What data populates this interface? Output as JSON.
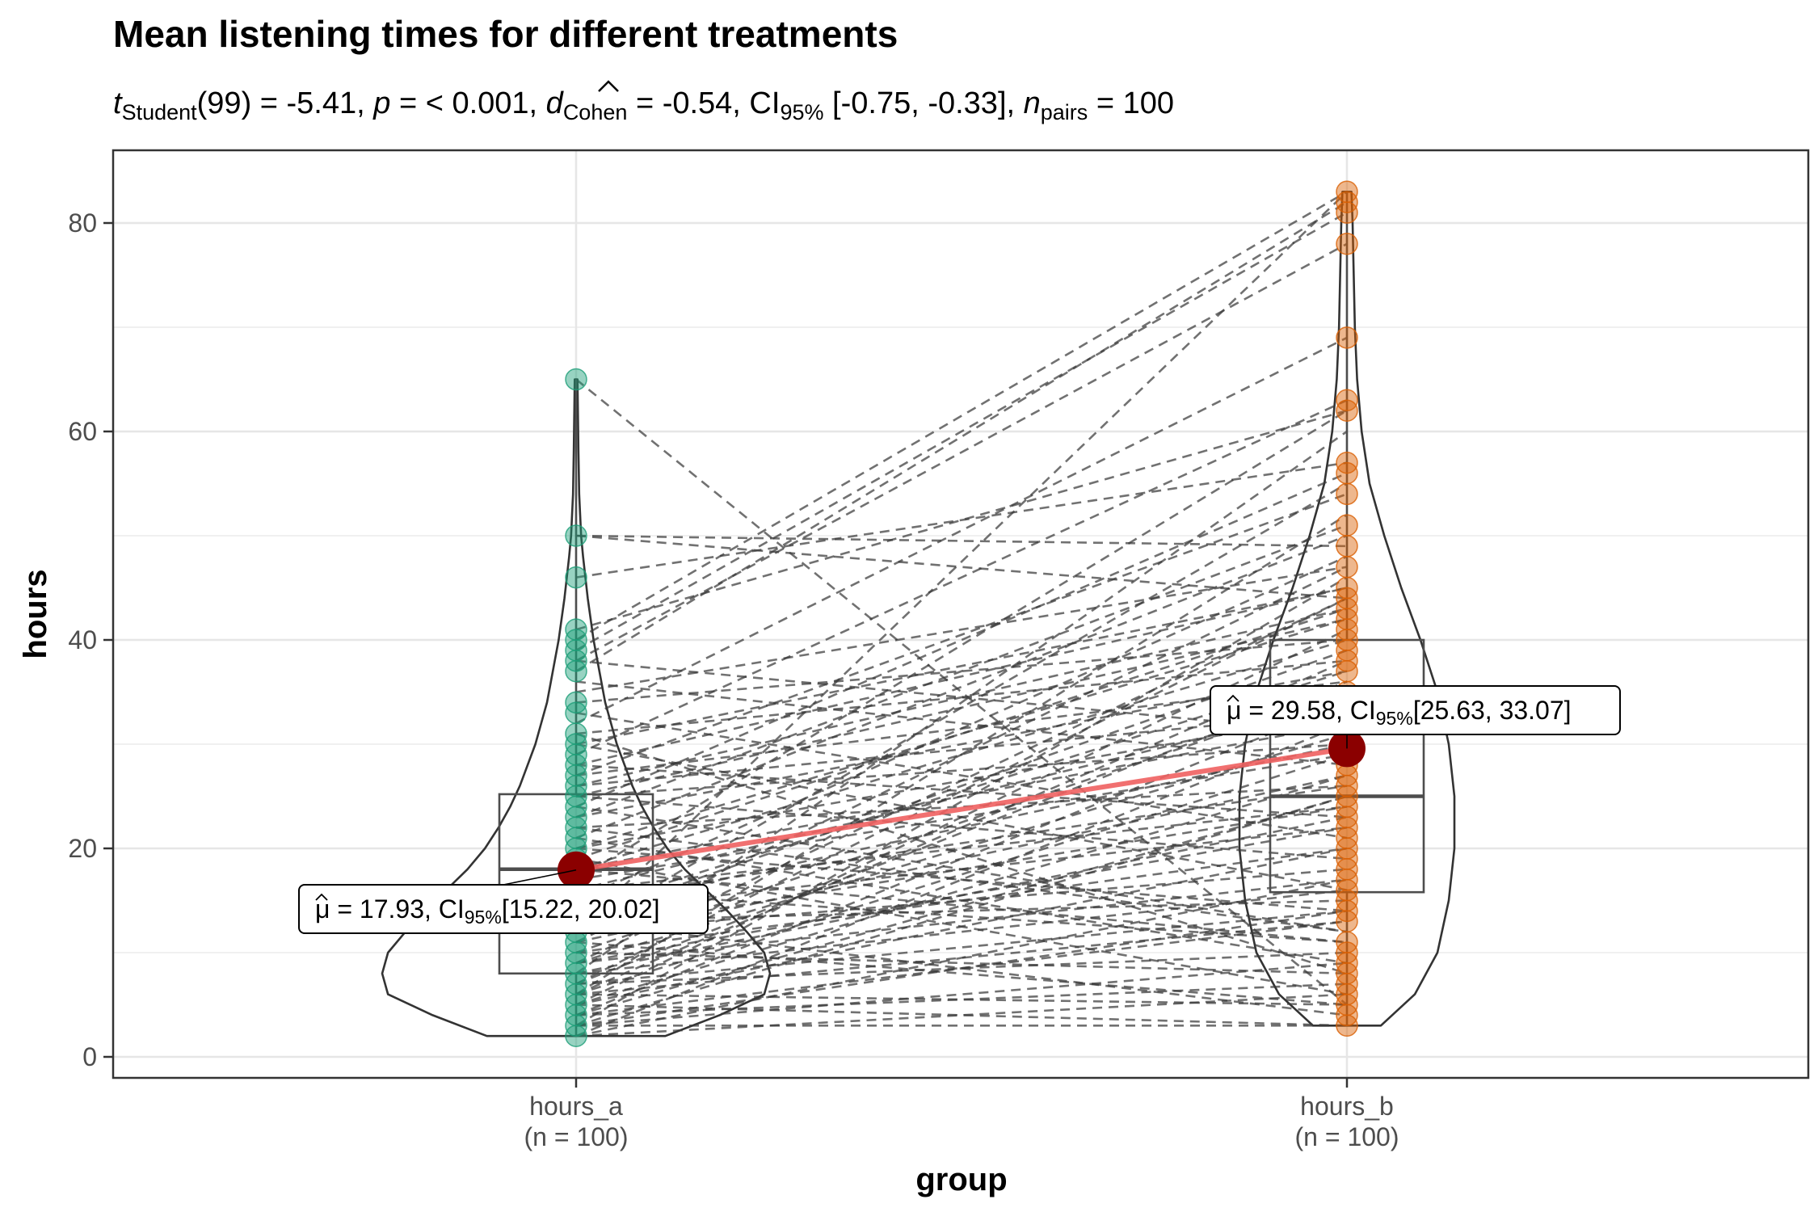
{
  "chart_data": {
    "type": "violin-box-paired",
    "title": "Mean listening times for different treatments",
    "subtitle": {
      "t_symbol": "t",
      "t_sub": "Student",
      "t_rest": "(99) = -5.41, ",
      "p_symbol": "p",
      "p_rest": " = < 0.001, ",
      "d_symbol": "d",
      "d_sub": "Cohen",
      "d_rest": " = -0.54, CI",
      "ci_sub": "95%",
      "ci_rest": " [-0.75, -0.33], ",
      "n_symbol": "n",
      "n_sub": "pairs",
      "n_rest": " = 100"
    },
    "xlabel": "group",
    "ylabel": "hours",
    "ylim": [
      -2,
      86
    ],
    "yticks": [
      0,
      20,
      40,
      60,
      80
    ],
    "grid": true,
    "groups": [
      {
        "name": "hours_a",
        "n_label": "(n = 100)",
        "color": "#1b9e77",
        "mean": 17.93,
        "label_mu": "μ",
        "label_text1": " = 17.93, CI",
        "label_sub": "95%",
        "label_text2": "[15.22, 20.02]",
        "box": {
          "q1": 8,
          "median": 18,
          "q3": 25.2,
          "min": 2,
          "max": 65
        },
        "violin": [
          [
            2,
            0.46
          ],
          [
            4,
            0.74
          ],
          [
            6,
            0.97
          ],
          [
            8,
            1.0
          ],
          [
            10,
            0.97
          ],
          [
            12,
            0.88
          ],
          [
            14,
            0.78
          ],
          [
            16,
            0.67
          ],
          [
            18,
            0.56
          ],
          [
            20,
            0.47
          ],
          [
            22,
            0.4
          ],
          [
            24,
            0.34
          ],
          [
            26,
            0.29
          ],
          [
            28,
            0.25
          ],
          [
            30,
            0.21
          ],
          [
            32,
            0.18
          ],
          [
            34,
            0.15
          ],
          [
            36,
            0.13
          ],
          [
            38,
            0.11
          ],
          [
            40,
            0.09
          ],
          [
            42,
            0.075
          ],
          [
            44,
            0.06
          ],
          [
            46,
            0.048
          ],
          [
            48,
            0.036
          ],
          [
            50,
            0.026
          ],
          [
            54,
            0.016
          ],
          [
            58,
            0.012
          ],
          [
            62,
            0.009
          ],
          [
            65,
            0.007
          ]
        ],
        "points": [
          65,
          50,
          46,
          41,
          40,
          39,
          38,
          37,
          34,
          33,
          31,
          30,
          29,
          28,
          27,
          26,
          25,
          24,
          23,
          22,
          21,
          20,
          19,
          18,
          17,
          16,
          15,
          14,
          13,
          12,
          11,
          10,
          9,
          8,
          7,
          6,
          5,
          4,
          3,
          2
        ]
      },
      {
        "name": "hours_b",
        "n_label": "(n = 100)",
        "color": "#d95f02",
        "mean": 29.58,
        "label_mu": "μ",
        "label_text1": " = 29.58, CI",
        "label_sub": "95%",
        "label_text2": "[25.63, 33.07]",
        "box": {
          "q1": 15.8,
          "median": 25,
          "q3": 40,
          "min": 3,
          "max": 83
        },
        "violin": [
          [
            3,
            0.3
          ],
          [
            6,
            0.6
          ],
          [
            10,
            0.8
          ],
          [
            15,
            0.9
          ],
          [
            20,
            0.95
          ],
          [
            25,
            0.95
          ],
          [
            30,
            0.9
          ],
          [
            35,
            0.8
          ],
          [
            40,
            0.65
          ],
          [
            45,
            0.48
          ],
          [
            50,
            0.33
          ],
          [
            55,
            0.2
          ],
          [
            60,
            0.13
          ],
          [
            65,
            0.09
          ],
          [
            70,
            0.07
          ],
          [
            75,
            0.06
          ],
          [
            80,
            0.05
          ],
          [
            83,
            0.04
          ]
        ],
        "points": [
          83,
          82,
          81,
          78,
          69,
          63,
          62,
          57,
          56,
          54,
          51,
          49,
          47,
          45,
          44,
          43,
          42,
          41,
          40,
          39,
          38,
          37,
          35,
          33,
          32,
          31,
          30,
          29,
          28,
          27,
          26,
          25,
          24,
          23,
          22,
          21,
          20,
          19,
          18,
          17,
          16,
          15,
          14,
          13,
          11,
          10,
          9,
          8,
          7,
          6,
          5,
          4,
          3
        ]
      }
    ],
    "pairs": [
      [
        65,
        5
      ],
      [
        50,
        49
      ],
      [
        50,
        44
      ],
      [
        46,
        57
      ],
      [
        41,
        62
      ],
      [
        40,
        83
      ],
      [
        39,
        81
      ],
      [
        38,
        78
      ],
      [
        38,
        31
      ],
      [
        37,
        82
      ],
      [
        36,
        28
      ],
      [
        35,
        47
      ],
      [
        34,
        40
      ],
      [
        33,
        21
      ],
      [
        32,
        69
      ],
      [
        31,
        38
      ],
      [
        30,
        45
      ],
      [
        29,
        63
      ],
      [
        28,
        23
      ],
      [
        27,
        54
      ],
      [
        26,
        33
      ],
      [
        25,
        42
      ],
      [
        25,
        19
      ],
      [
        24,
        56
      ],
      [
        23,
        37
      ],
      [
        22,
        26
      ],
      [
        21,
        50
      ],
      [
        20,
        14
      ],
      [
        19,
        43
      ],
      [
        18,
        32
      ],
      [
        17,
        62
      ],
      [
        16,
        24
      ],
      [
        16,
        11
      ],
      [
        15,
        48
      ],
      [
        14,
        30
      ],
      [
        13,
        39
      ],
      [
        12,
        18
      ],
      [
        12,
        83
      ],
      [
        11,
        27
      ],
      [
        10,
        35
      ],
      [
        10,
        8
      ],
      [
        9,
        44
      ],
      [
        9,
        22
      ],
      [
        8,
        60
      ],
      [
        8,
        16
      ],
      [
        7,
        36
      ],
      [
        7,
        10
      ],
      [
        6,
        29
      ],
      [
        6,
        52
      ],
      [
        6,
        5
      ],
      [
        5,
        41
      ],
      [
        5,
        20
      ],
      [
        5,
        3
      ],
      [
        4,
        34
      ],
      [
        4,
        13
      ],
      [
        4,
        7
      ],
      [
        3,
        25
      ],
      [
        3,
        46
      ],
      [
        3,
        9
      ],
      [
        3,
        3
      ],
      [
        2,
        17
      ],
      [
        2,
        6
      ],
      [
        22,
        12
      ],
      [
        18,
        40
      ],
      [
        13,
        15
      ],
      [
        27,
        36
      ],
      [
        31,
        8
      ],
      [
        20,
        33
      ],
      [
        15,
        26
      ],
      [
        11,
        47
      ],
      [
        24,
        12
      ],
      [
        9,
        31
      ],
      [
        26,
        43
      ],
      [
        19,
        6
      ],
      [
        14,
        37
      ],
      [
        8,
        23
      ],
      [
        12,
        55
      ],
      [
        7,
        14
      ],
      [
        17,
        29
      ],
      [
        21,
        9
      ],
      [
        28,
        45
      ],
      [
        10,
        20
      ],
      [
        6,
        38
      ],
      [
        4,
        25
      ],
      [
        30,
        16
      ],
      [
        23,
        51
      ],
      [
        16,
        34
      ],
      [
        13,
        4
      ],
      [
        5,
        27
      ],
      [
        3,
        14
      ],
      [
        2,
        32
      ],
      [
        11,
        5
      ],
      [
        20,
        42
      ],
      [
        14,
        22
      ],
      [
        9,
        17
      ],
      [
        7,
        44
      ],
      [
        25,
        30
      ],
      [
        18,
        11
      ],
      [
        12,
        24
      ],
      [
        6,
        13
      ]
    ],
    "mean_line_color": "#f06060",
    "mean_point_color": "#8b0000"
  }
}
